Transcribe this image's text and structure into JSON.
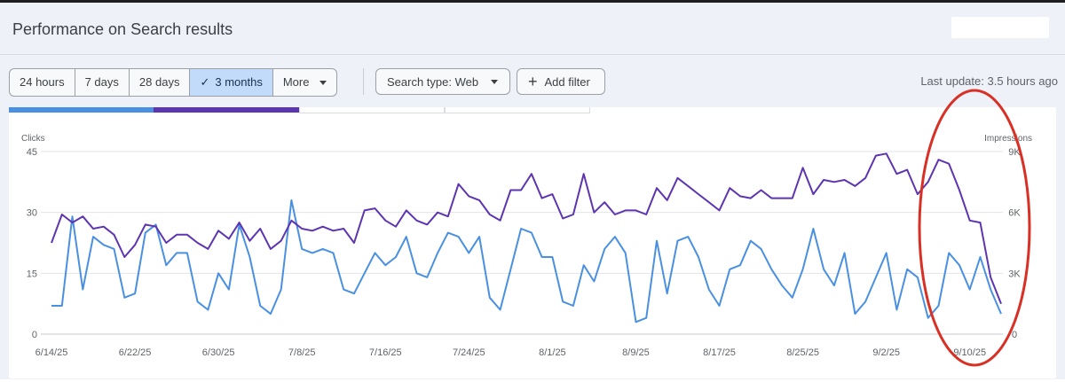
{
  "header": {
    "title": "Performance on Search results"
  },
  "toolbar": {
    "ranges": [
      {
        "label": "24 hours",
        "active": false
      },
      {
        "label": "7 days",
        "active": false
      },
      {
        "label": "28 days",
        "active": false
      },
      {
        "label": "3 months",
        "active": true
      },
      {
        "label": "More",
        "active": false
      }
    ],
    "search_type_label": "Search type: Web",
    "add_filter_label": "Add filter",
    "last_update": "Last update: 3.5 hours ago"
  },
  "colors": {
    "clicks": "#4a90e2",
    "impressions": "#5e35b1",
    "annotation": "#d93025"
  },
  "chart_data": {
    "type": "line",
    "yleft_label": "Clicks",
    "yright_label": "Impressions",
    "yleft_lim": [
      0,
      45
    ],
    "yright_lim": [
      0,
      9000
    ],
    "yleft_ticks": [
      "0",
      "15",
      "30",
      "45"
    ],
    "yright_ticks": [
      "0",
      "3K",
      "6K",
      "9K"
    ],
    "x_ticks": [
      "6/14/25",
      "6/22/25",
      "6/30/25",
      "7/8/25",
      "7/16/25",
      "7/24/25",
      "8/1/25",
      "8/9/25",
      "8/17/25",
      "8/25/25",
      "9/2/25",
      "9/10/25"
    ],
    "series": [
      {
        "name": "Clicks",
        "axis": "left",
        "values": [
          7,
          7,
          29,
          11,
          24,
          22,
          21,
          9,
          10,
          25,
          27,
          17,
          20,
          20,
          8,
          6,
          15,
          11,
          27,
          19,
          7,
          5,
          11,
          33,
          21,
          20,
          21,
          20,
          11,
          10,
          15,
          20,
          17,
          19,
          24,
          15,
          14,
          20,
          25,
          24,
          20,
          24,
          9,
          6,
          16,
          26,
          25,
          19,
          19,
          8,
          7,
          17,
          13,
          21,
          24,
          20,
          3,
          4,
          23,
          10,
          23,
          24,
          19,
          11,
          7,
          16,
          17,
          23,
          21,
          16,
          12,
          9,
          16,
          26,
          16,
          12,
          20,
          5,
          8,
          14,
          20,
          6,
          16,
          14,
          4,
          7,
          20,
          17,
          11,
          19,
          11,
          5
        ]
      },
      {
        "name": "Impressions",
        "axis": "right",
        "values": [
          4500,
          5900,
          5500,
          5800,
          5200,
          5300,
          4900,
          3800,
          4400,
          5400,
          5300,
          4500,
          4900,
          4900,
          4500,
          4200,
          5100,
          4700,
          5500,
          4600,
          5200,
          4200,
          4600,
          5600,
          5200,
          5100,
          5300,
          5100,
          5200,
          4500,
          6100,
          6200,
          5600,
          5300,
          6100,
          5600,
          5400,
          6000,
          5800,
          7400,
          6800,
          6600,
          5900,
          5600,
          7100,
          7100,
          7900,
          6700,
          6900,
          5700,
          5900,
          7900,
          6000,
          6500,
          5900,
          6100,
          6100,
          5900,
          7200,
          6600,
          7700,
          7300,
          6900,
          6500,
          6100,
          7200,
          6800,
          6700,
          7100,
          6700,
          6700,
          6700,
          8200,
          6900,
          7600,
          7500,
          7600,
          7300,
          7700,
          8800,
          8900,
          7900,
          8100,
          6900,
          7500,
          8600,
          8400,
          7100,
          5600,
          5500,
          2800,
          1500
        ]
      }
    ],
    "grid": true
  }
}
